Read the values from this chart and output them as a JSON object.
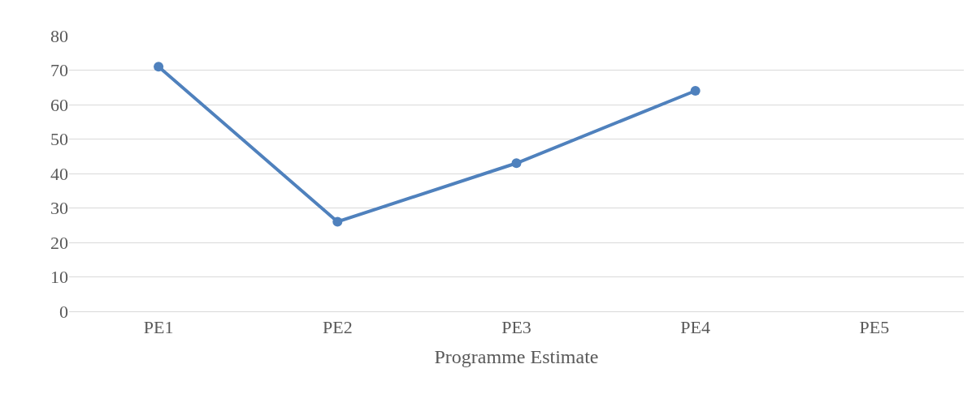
{
  "chart_data": {
    "type": "line",
    "xlabel": "Programme Estimate",
    "categories": [
      "PE1",
      "PE2",
      "PE3",
      "PE4",
      "PE5"
    ],
    "series": [
      {
        "color": "#4f81bd",
        "values": [
          71,
          26,
          43,
          64,
          null
        ]
      }
    ],
    "ylim": [
      0,
      80
    ],
    "yticks": [
      0,
      10,
      20,
      30,
      40,
      50,
      60,
      70,
      80
    ],
    "grid": "y",
    "legend": false,
    "marker": "circle",
    "line_style": "solid"
  }
}
